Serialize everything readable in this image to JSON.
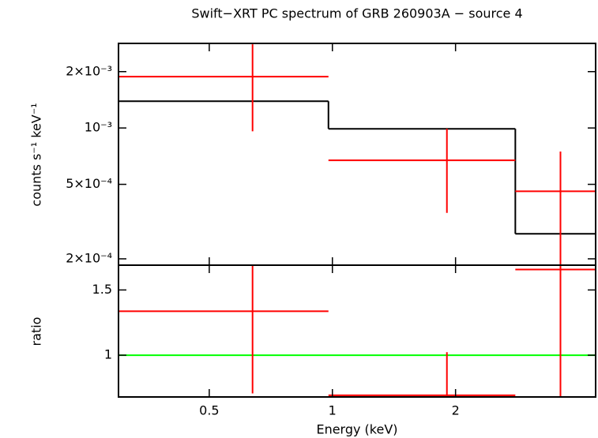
{
  "chart_data": [
    {
      "type": "errorbar",
      "title": "Swift−XRT PC spectrum of GRB 260903A − source 4",
      "ylabel": "counts s⁻¹ keV⁻¹",
      "xscale": "log",
      "yscale": "log",
      "xlim": [
        0.3,
        4.4
      ],
      "xticks": [
        0.5,
        1,
        2
      ],
      "ylim": [
        0.000185,
        0.00283
      ],
      "yticks": [
        {
          "value": 0.0002,
          "label": "2×10⁻⁴"
        },
        {
          "value": 0.0005,
          "label": "5×10⁻⁴"
        },
        {
          "value": 0.001,
          "label": "10⁻³"
        },
        {
          "value": 0.002,
          "label": "2×10⁻³"
        }
      ],
      "series": [
        {
          "color": "#ff0000",
          "x": [
            0.638,
            1.905,
            3.61
          ],
          "x_lo": [
            0.3,
            0.978,
            2.8
          ],
          "x_hi": [
            0.978,
            2.8,
            4.4
          ],
          "values": [
            0.00188,
            0.000672,
            0.000459
          ],
          "yerr": [
            0.00092,
            0.00032,
            0.00029
          ]
        }
      ],
      "model": {
        "color": "#000000",
        "edges": [
          0.3,
          0.978,
          2.8,
          4.4
        ],
        "values": [
          0.00139,
          0.00099,
          0.000272
        ]
      }
    },
    {
      "type": "errorbar",
      "ylabel": "ratio",
      "xlabel": "Energy (keV)",
      "xscale": "log",
      "yscale": "linear",
      "xlim": [
        0.3,
        4.4
      ],
      "xticks": [
        0.5,
        1,
        2
      ],
      "ylim": [
        0.68,
        1.69
      ],
      "yticks": [
        1,
        1.5
      ],
      "series": [
        {
          "color": "#ff0000",
          "x": [
            0.638,
            1.905,
            3.61
          ],
          "x_lo": [
            0.3,
            0.978,
            2.8
          ],
          "x_hi": [
            0.978,
            2.8,
            4.4
          ],
          "values": [
            1.337,
            0.693,
            1.657
          ],
          "yerr": [
            0.63,
            0.33,
            1.06
          ]
        }
      ],
      "hline": {
        "value": 1,
        "color": "#00ff00"
      }
    }
  ]
}
